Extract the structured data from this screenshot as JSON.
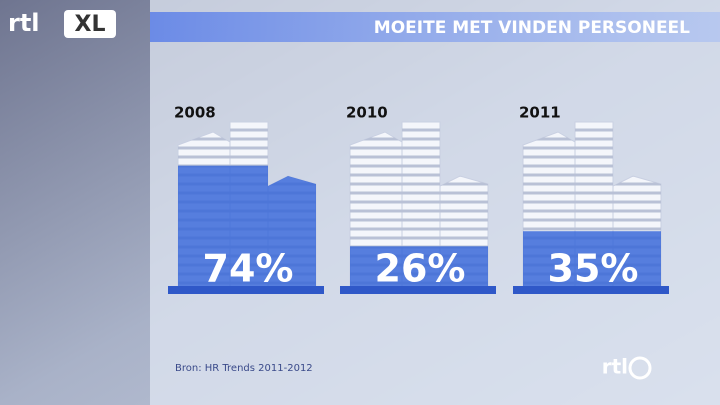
{
  "branding": {
    "logo": "rtl",
    "badge": "XL",
    "watermark": "rtl"
  },
  "chart_data": {
    "type": "pictogram",
    "title": "MOEITE MET VINDEN PERSONEEL",
    "categories": [
      "2008",
      "2010",
      "2011"
    ],
    "values": [
      74,
      26,
      35
    ],
    "value_labels": [
      "74%",
      "26%",
      "35%"
    ],
    "color": "#3a68d8",
    "ylim": [
      0,
      100
    ],
    "source": "Bron: HR Trends 2011-2012"
  }
}
